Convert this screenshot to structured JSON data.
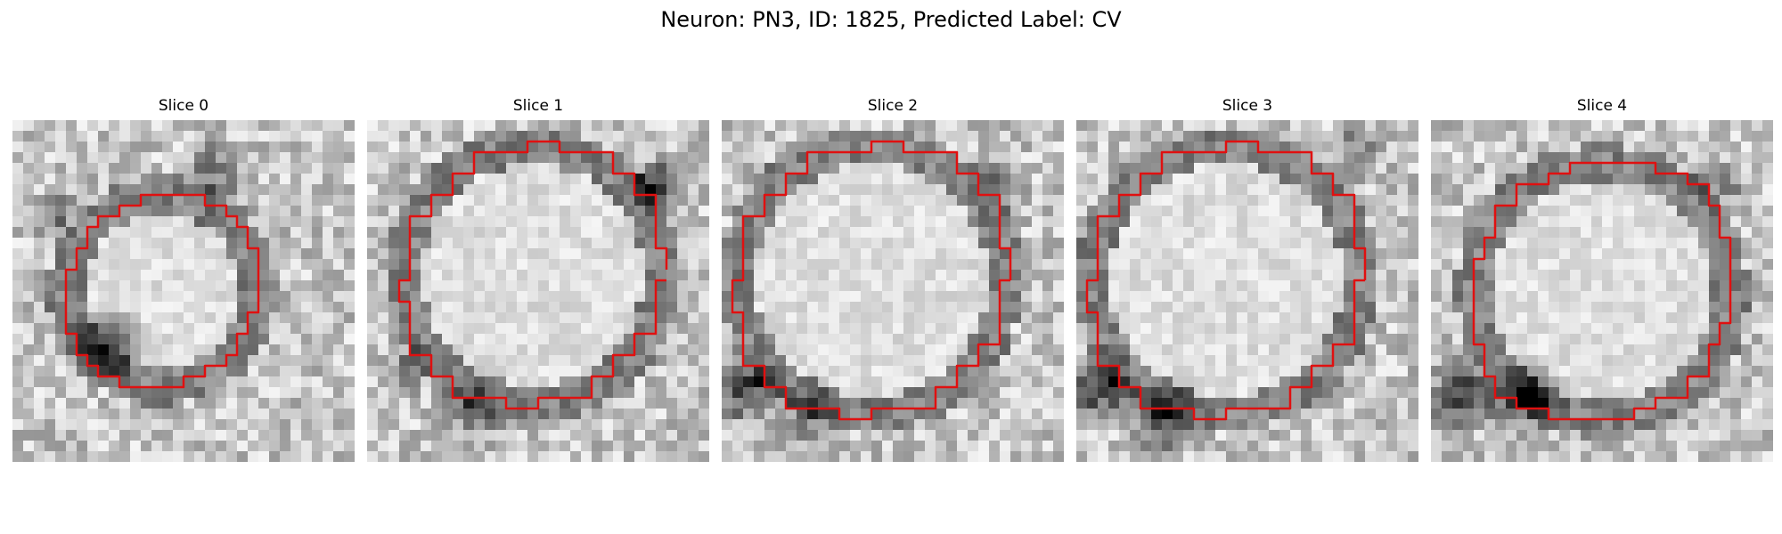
{
  "figure": {
    "title": "Neuron: PN3, ID: 1825, Predicted Label: CV",
    "contour_color": "#e01010",
    "slices": [
      {
        "title": "Slice 0"
      },
      {
        "title": "Slice 1"
      },
      {
        "title": "Slice 2"
      },
      {
        "title": "Slice 3"
      },
      {
        "title": "Slice 4"
      }
    ]
  }
}
